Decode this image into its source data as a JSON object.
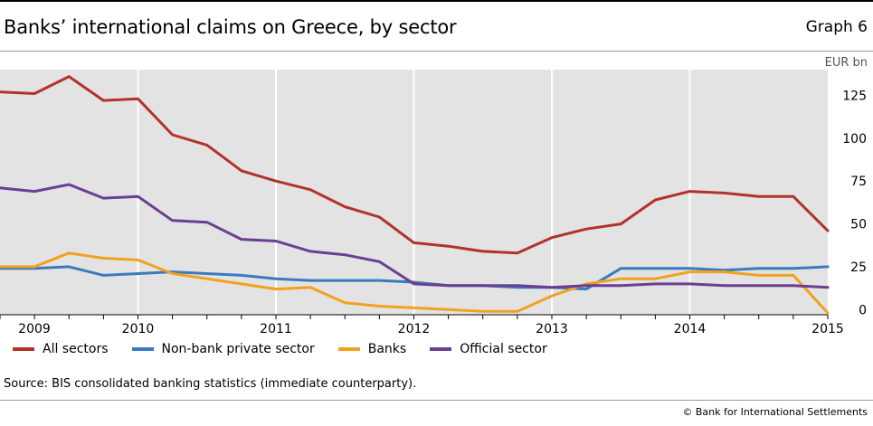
{
  "header": {
    "title": "Banks’ international claims on Greece, by sector",
    "graph_number": "Graph 6",
    "unit": "EUR bn"
  },
  "footer": {
    "source": "Source: BIS consolidated banking statistics (immediate counterparty).",
    "copyright": "© Bank for International Settlements"
  },
  "colors": {
    "all_sectors": "#b2322c",
    "non_bank": "#3a7bbf",
    "banks": "#f0a21e",
    "official": "#6a3f91",
    "plot_bg": "#e3e3e3"
  },
  "chart_data": {
    "type": "line",
    "title": "Banks’ international claims on Greece, by sector",
    "ylabel": "EUR bn",
    "ylim": [
      -3,
      140
    ],
    "yticks": [
      0,
      25,
      50,
      75,
      100,
      125
    ],
    "xlim": [
      2009.0,
      2015.0
    ],
    "year_ticks": [
      "2009",
      "2010",
      "2011",
      "2012",
      "2013",
      "2014",
      "2015"
    ],
    "grid": "vertical lines at year boundaries",
    "legend_position": "bottom",
    "x": [
      2009.0,
      2009.25,
      2009.5,
      2009.75,
      2010.0,
      2010.25,
      2010.5,
      2010.75,
      2011.0,
      2011.25,
      2011.5,
      2011.75,
      2012.0,
      2012.25,
      2012.5,
      2012.75,
      2013.0,
      2013.25,
      2013.5,
      2013.75,
      2014.0,
      2014.25,
      2014.5,
      2014.75,
      2015.0
    ],
    "series": [
      {
        "name": "All sectors",
        "color": "#b2322c",
        "values": [
          127,
          126,
          136,
          122,
          123,
          102,
          96,
          81,
          75,
          70,
          60,
          54,
          39,
          37,
          34,
          33,
          42,
          47,
          50,
          64,
          69,
          68,
          66,
          66,
          46
        ]
      },
      {
        "name": "Non-bank private sector",
        "color": "#3a7bbf",
        "values": [
          24,
          24,
          25,
          20,
          21,
          22,
          21,
          20,
          18,
          17,
          17,
          17,
          16,
          14,
          14,
          13,
          13,
          12,
          24,
          24,
          24,
          23,
          24,
          24,
          25
        ]
      },
      {
        "name": "Banks",
        "color": "#f0a21e",
        "values": [
          25,
          25,
          33,
          30,
          29,
          21,
          18,
          15,
          12,
          13,
          4,
          2,
          1,
          0,
          -1,
          -1,
          8,
          15,
          18,
          18,
          22,
          22,
          20,
          20,
          -2
        ]
      },
      {
        "name": "Official sector",
        "color": "#6a3f91",
        "values": [
          71,
          69,
          73,
          65,
          66,
          52,
          51,
          41,
          40,
          34,
          32,
          28,
          15,
          14,
          14,
          14,
          13,
          14,
          14,
          15,
          15,
          14,
          14,
          14,
          13
        ]
      }
    ]
  }
}
